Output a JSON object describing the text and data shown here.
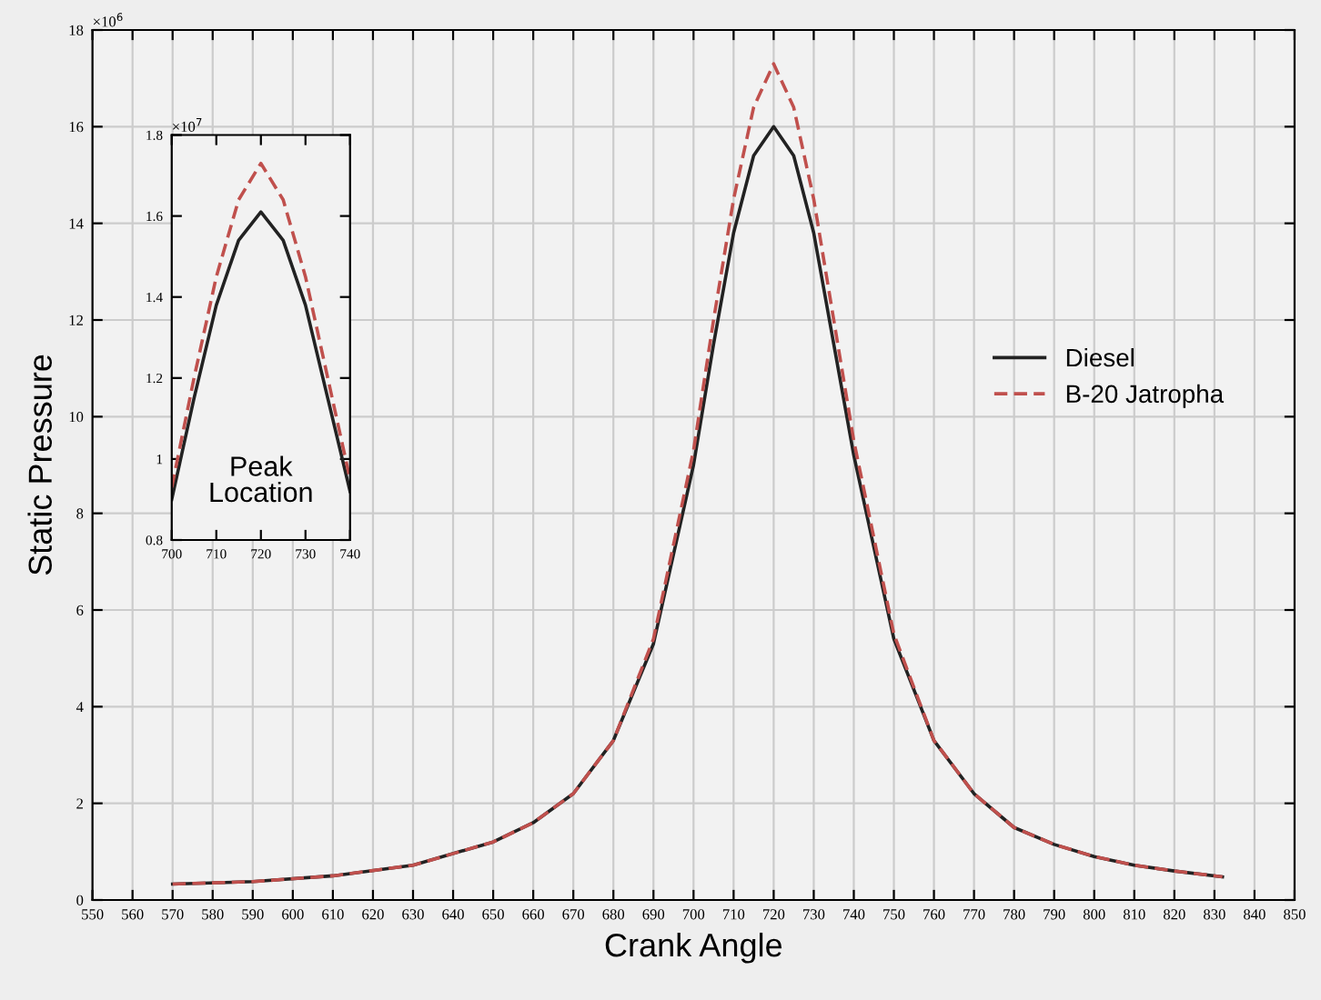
{
  "chart_data": [
    {
      "type": "line",
      "xlabel": "Crank Angle",
      "ylabel": "Static Pressure",
      "annotations": [
        "×10$^{6}$"
      ],
      "xlim": [
        550,
        850
      ],
      "xticks": [
        550,
        560,
        570,
        580,
        590,
        600,
        610,
        620,
        630,
        640,
        650,
        660,
        670,
        680,
        690,
        700,
        710,
        720,
        730,
        740,
        750,
        760,
        770,
        780,
        790,
        800,
        810,
        820,
        830,
        840,
        850
      ],
      "ylim": [
        0,
        18
      ],
      "yticks": [
        0,
        2,
        4,
        6,
        8,
        10,
        12,
        14,
        16,
        18
      ],
      "grid": true,
      "legend": "right",
      "series": [
        {
          "name": "Diesel",
          "color": "#222222",
          "line_style": "solid",
          "x": [
            570,
            590,
            610,
            630,
            650,
            660,
            670,
            680,
            690,
            700,
            705,
            710,
            715,
            720,
            725,
            730,
            735,
            740,
            750,
            760,
            770,
            780,
            790,
            800,
            810,
            820,
            832
          ],
          "values": [
            0.33,
            0.38,
            0.5,
            0.72,
            1.2,
            1.6,
            2.2,
            3.3,
            5.3,
            9.0,
            11.5,
            13.8,
            15.4,
            16.0,
            15.4,
            13.8,
            11.5,
            9.2,
            5.4,
            3.3,
            2.2,
            1.5,
            1.15,
            0.9,
            0.72,
            0.6,
            0.48
          ]
        },
        {
          "name": "B-20 Jatropha",
          "color": "#c0504d",
          "line_style": "dashed",
          "x": [
            570,
            590,
            610,
            630,
            650,
            660,
            670,
            680,
            690,
            700,
            705,
            710,
            715,
            720,
            725,
            730,
            735,
            740,
            750,
            760,
            770,
            780,
            790,
            800,
            810,
            820,
            832
          ],
          "values": [
            0.33,
            0.38,
            0.5,
            0.72,
            1.2,
            1.6,
            2.2,
            3.3,
            5.4,
            9.3,
            12.0,
            14.5,
            16.4,
            17.3,
            16.4,
            14.5,
            12.0,
            9.5,
            5.5,
            3.3,
            2.2,
            1.5,
            1.15,
            0.9,
            0.72,
            0.6,
            0.48
          ]
        }
      ]
    },
    {
      "type": "line",
      "annotations": [
        "×10$^{7}$",
        "Peak\nLocation"
      ],
      "xlim": [
        700,
        740
      ],
      "xticks": [
        700,
        710,
        720,
        730,
        740
      ],
      "ylim": [
        0.8,
        1.8
      ],
      "yticks": [
        0.8,
        1,
        1.2,
        1.4,
        1.6,
        1.8
      ],
      "grid": false,
      "legend": false,
      "series": [
        {
          "color": "#222222",
          "line_style": "solid",
          "x": [
            700,
            705,
            710,
            715,
            720,
            725,
            730,
            735,
            740
          ],
          "values": [
            0.9,
            1.15,
            1.38,
            1.54,
            1.61,
            1.54,
            1.38,
            1.15,
            0.92
          ]
        },
        {
          "color": "#c0504d",
          "line_style": "dashed",
          "x": [
            700,
            705,
            710,
            715,
            720,
            725,
            730,
            735,
            740
          ],
          "values": [
            0.93,
            1.2,
            1.45,
            1.64,
            1.73,
            1.64,
            1.45,
            1.2,
            0.95
          ]
        }
      ]
    }
  ]
}
